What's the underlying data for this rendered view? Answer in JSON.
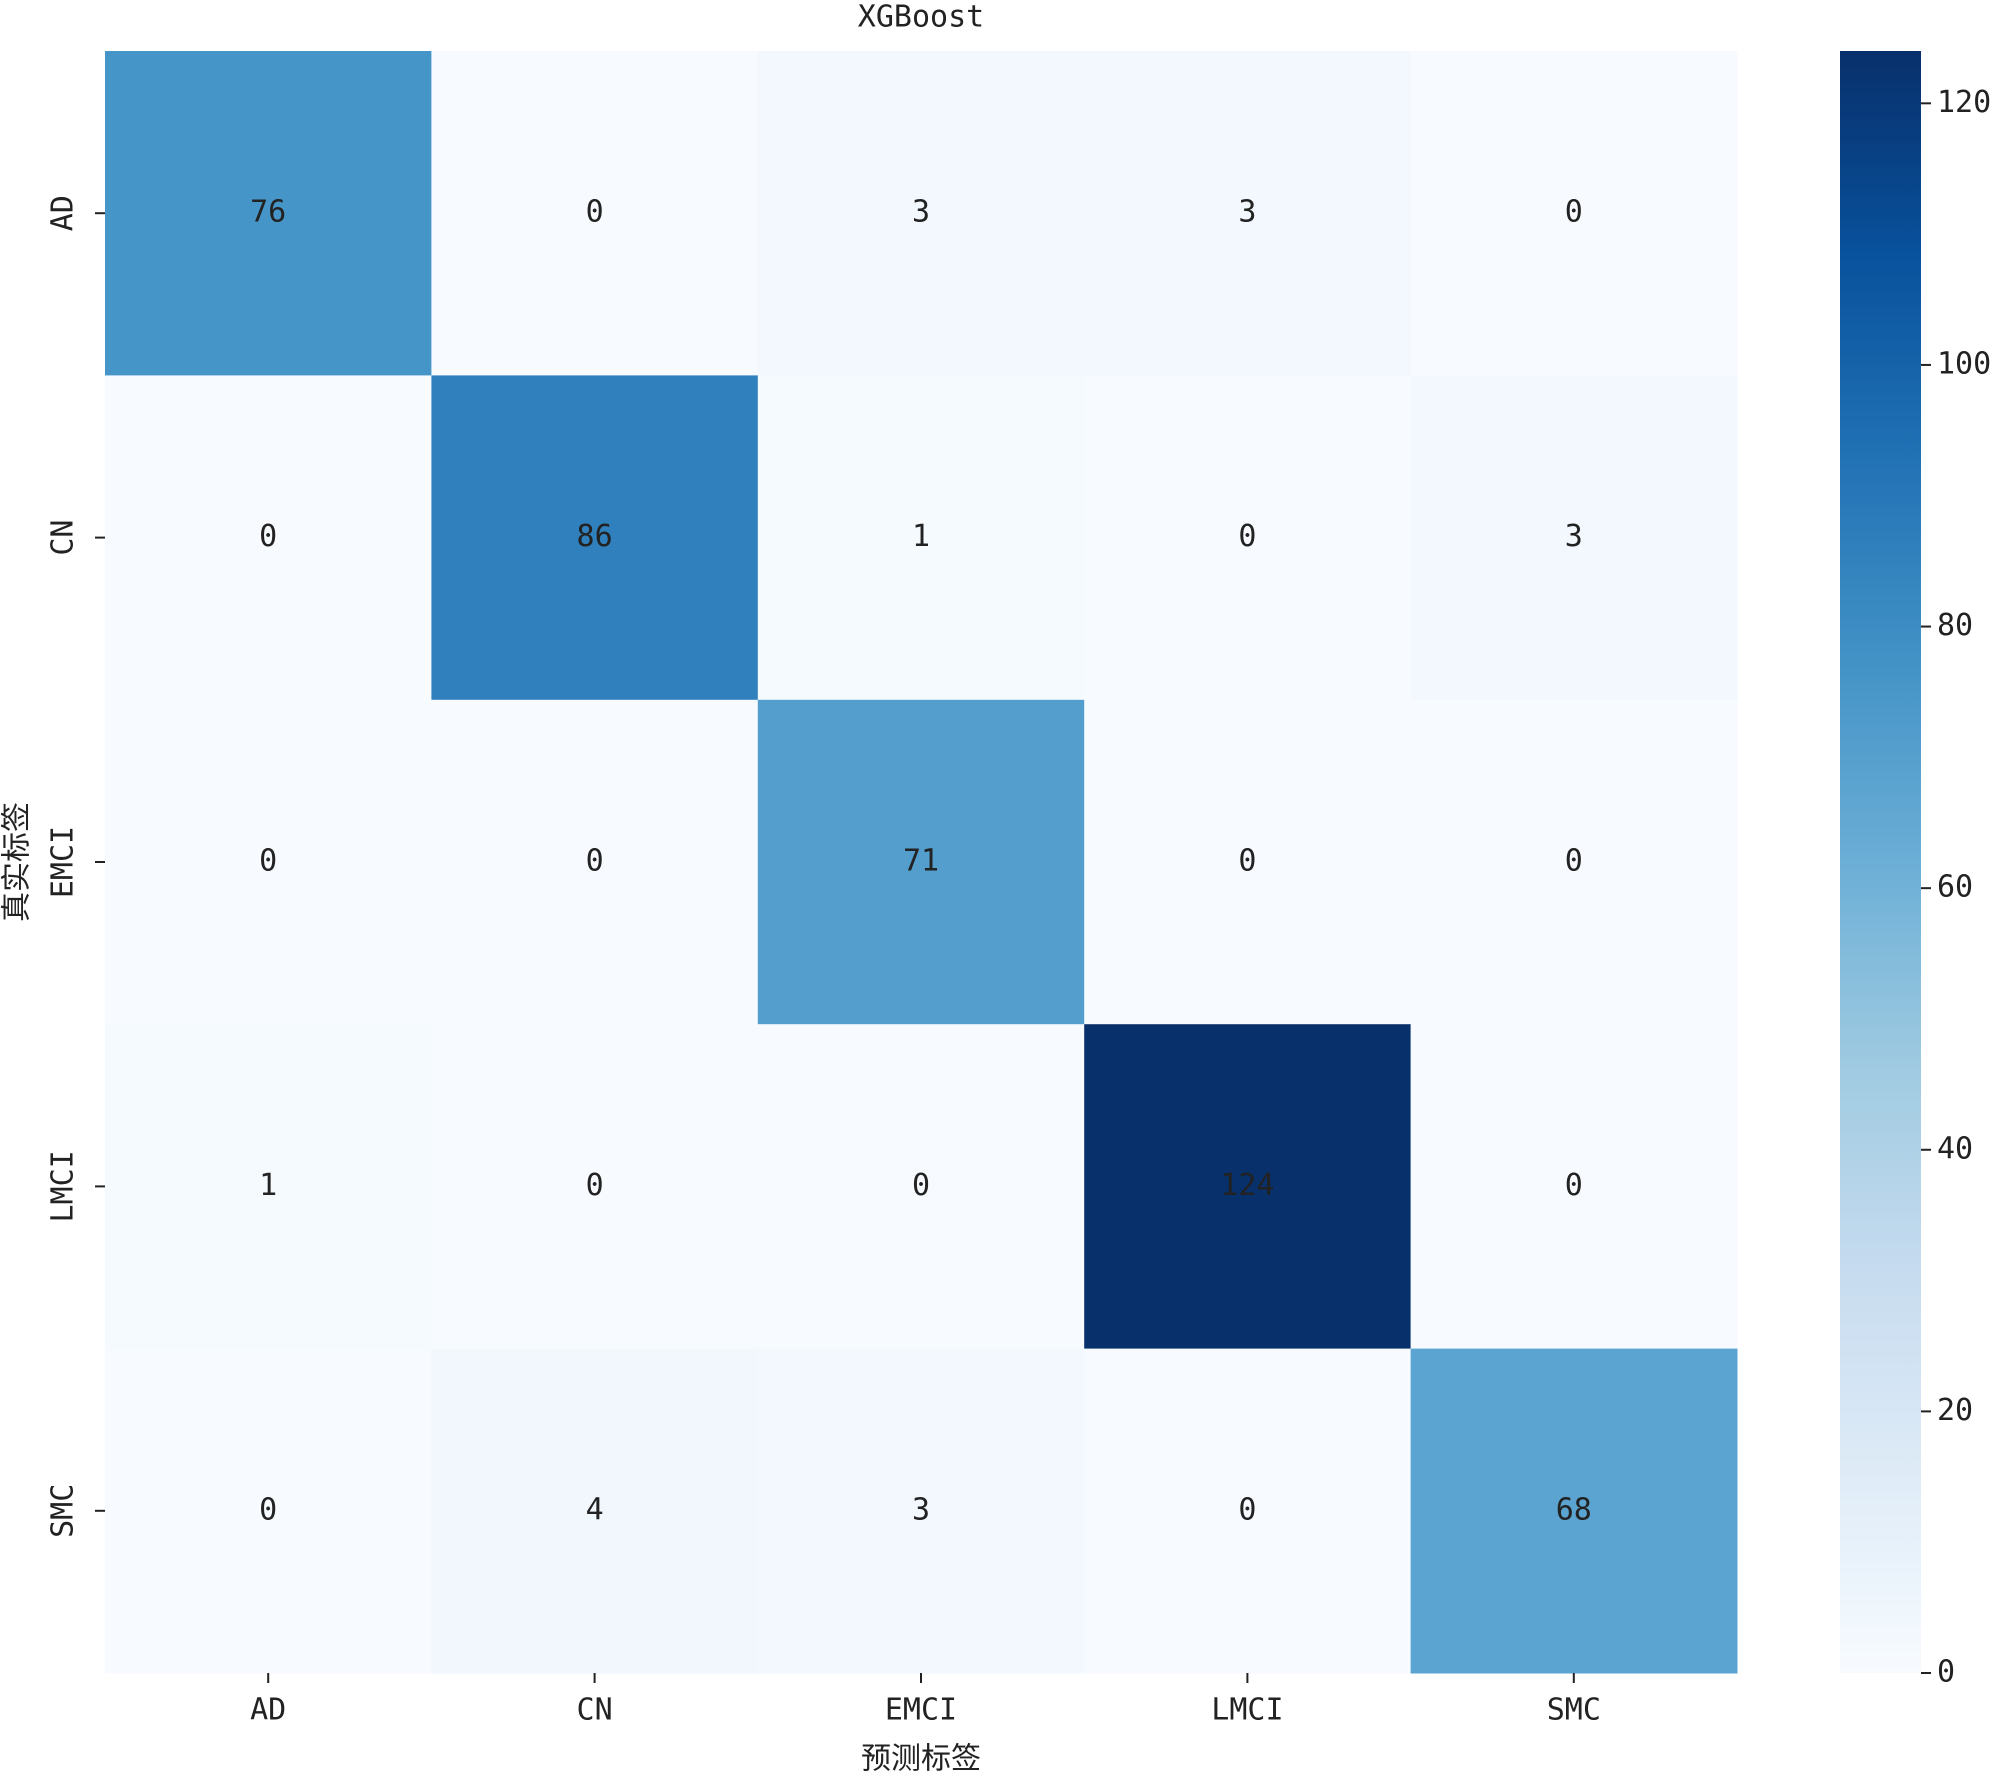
{
  "chart_data": {
    "type": "heatmap",
    "title": "XGBoost",
    "x_label": "预测标签",
    "y_label": "真实标签",
    "x_categories": [
      "AD",
      "CN",
      "EMCI",
      "LMCI",
      "SMC"
    ],
    "y_categories": [
      "AD",
      "CN",
      "EMCI",
      "LMCI",
      "SMC"
    ],
    "values": [
      [
        76,
        0,
        3,
        3,
        0
      ],
      [
        0,
        86,
        1,
        0,
        3
      ],
      [
        0,
        0,
        71,
        0,
        0
      ],
      [
        1,
        0,
        0,
        124,
        0
      ],
      [
        0,
        4,
        3,
        0,
        68
      ]
    ],
    "colormap": "Blues",
    "clim": [
      0,
      124
    ],
    "cticks": [
      0,
      20,
      40,
      60,
      80,
      100,
      120
    ]
  }
}
